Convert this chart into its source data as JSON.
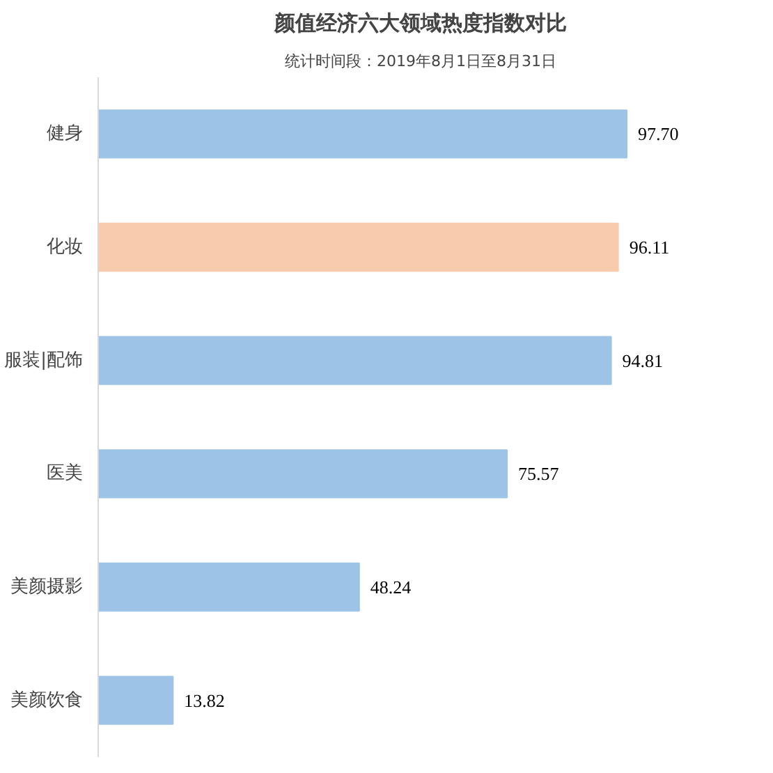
{
  "chart_data": {
    "type": "bar",
    "orientation": "horizontal",
    "title": "颜值经济六大领域热度指数对比",
    "subtitle": "统计时间段：2019年8月1日至8月31日",
    "categories": [
      "健身",
      "化妆",
      "服装|配饰",
      "医美",
      "美颜摄影",
      "美颜饮食"
    ],
    "values": [
      97.7,
      96.11,
      94.81,
      75.57,
      48.24,
      13.82
    ],
    "value_labels": [
      "97.70",
      "96.11",
      "94.81",
      "75.57",
      "48.24",
      "13.82"
    ],
    "colors": [
      "#9dc3e6",
      "#f8cbad",
      "#9dc3e6",
      "#9dc3e6",
      "#9dc3e6",
      "#9dc3e6"
    ],
    "grid": false
  }
}
